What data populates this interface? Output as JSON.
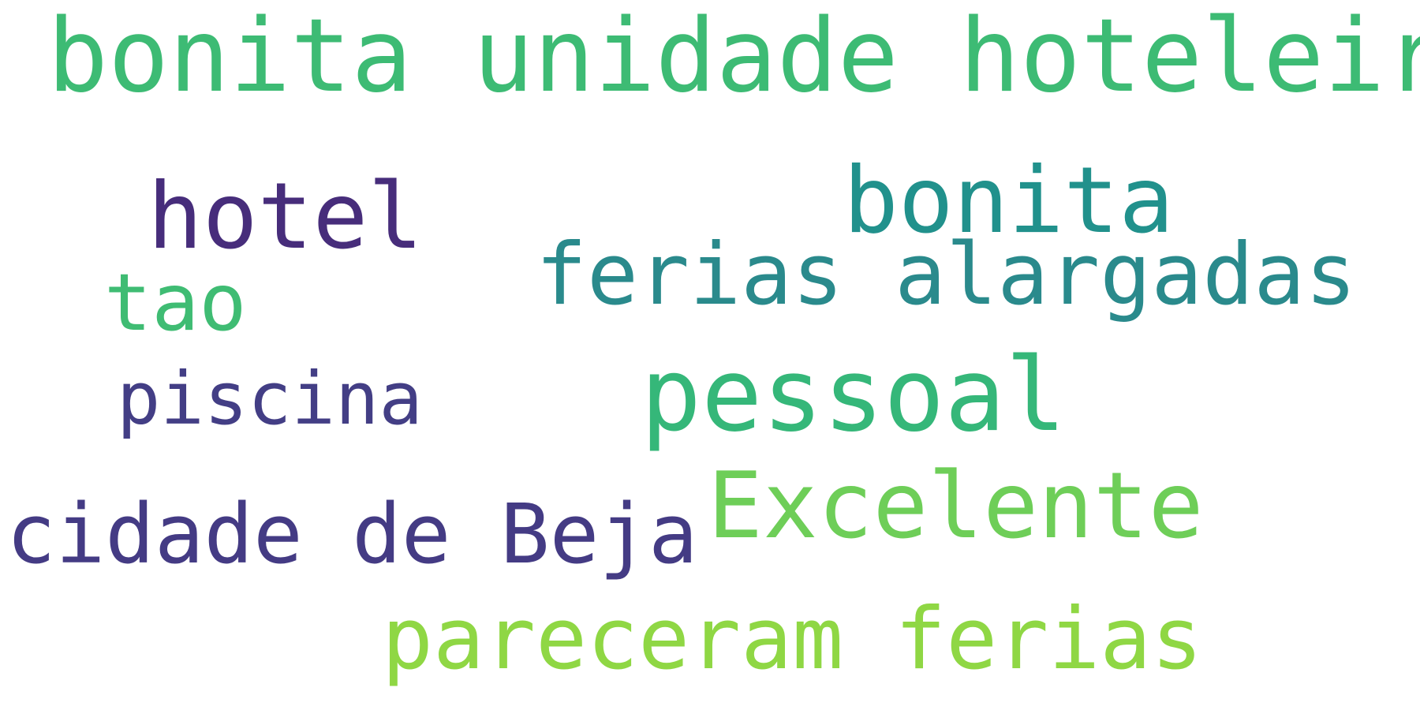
{
  "words": [
    {
      "text": "bonita unidade hoteleira",
      "color": "#3dbb74"
    },
    {
      "text": "hotel",
      "color": "#472d7b"
    },
    {
      "text": "bonita",
      "color": "#21918c"
    },
    {
      "text": "ferias alargadas",
      "color": "#2a8a8c"
    },
    {
      "text": "tao",
      "color": "#3fbc73"
    },
    {
      "text": "piscina",
      "color": "#433e85"
    },
    {
      "text": "pessoal",
      "color": "#35b779"
    },
    {
      "text": "cidade de Beja",
      "color": "#443b84"
    },
    {
      "text": "Excelente",
      "color": "#6ece58"
    },
    {
      "text": "pareceram ferias",
      "color": "#8fd744"
    }
  ]
}
